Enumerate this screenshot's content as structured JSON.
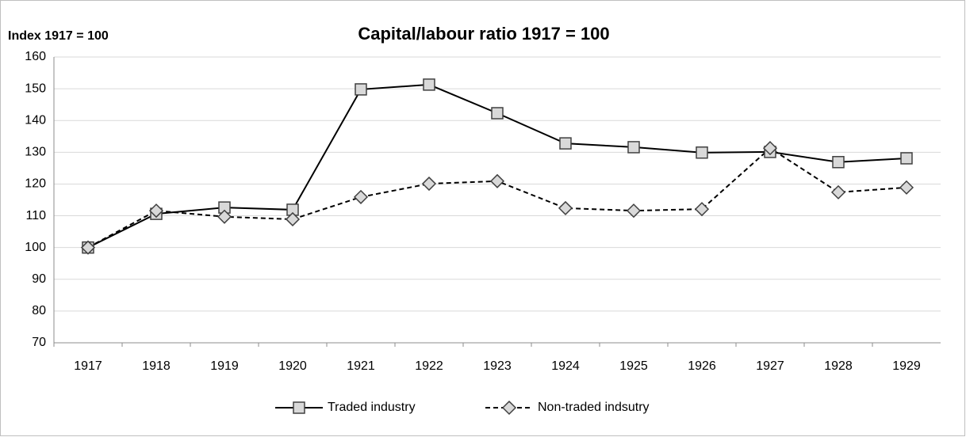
{
  "chart_data": {
    "type": "line",
    "title": "Capital/labour ratio 1917 = 100",
    "y_label": "Index 1917 = 100",
    "categories": [
      "1917",
      "1918",
      "1919",
      "1920",
      "1921",
      "1922",
      "1923",
      "1924",
      "1925",
      "1926",
      "1927",
      "1928",
      "1929"
    ],
    "series": [
      {
        "name": "Traded industry",
        "color": "#000000",
        "marker_color": "#d9d9d9",
        "marker": "square",
        "dash": "solid",
        "values": [
          100,
          110.6,
          112.6,
          111.9,
          149.8,
          151.3,
          142.3,
          132.8,
          131.6,
          129.9,
          130.1,
          126.9,
          128.1
        ]
      },
      {
        "name": "Non-traded indsutry",
        "color": "#000000",
        "marker_color": "#d9d9d9",
        "marker": "diamond",
        "dash": "dashed",
        "values": [
          100,
          111.6,
          109.7,
          108.9,
          115.9,
          120.1,
          120.9,
          112.4,
          111.6,
          112.1,
          131.3,
          117.4,
          118.9
        ]
      }
    ],
    "ylim": [
      70,
      160
    ],
    "yticks": [
      70,
      80,
      90,
      100,
      110,
      120,
      130,
      140,
      150,
      160
    ],
    "grid": true,
    "legend": "bottom"
  }
}
